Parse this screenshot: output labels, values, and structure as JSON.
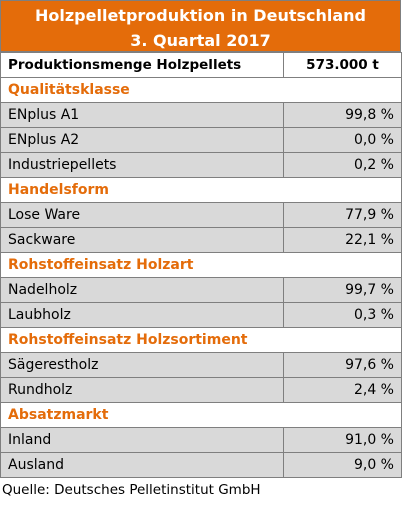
{
  "header": {
    "title": "Holzpelletproduktion in Deutschland",
    "subtitle": "3. Quartal 2017"
  },
  "table": {
    "header": [
      "Produktionsmenge Holzpellets",
      "573.000 t"
    ],
    "sections": [
      {
        "title": "Qualitätsklasse",
        "rows": [
          [
            "ENplus A1",
            "99,8 %"
          ],
          [
            "ENplus A2",
            "0,0 %"
          ],
          [
            "Industriepellets",
            "0,2 %"
          ]
        ]
      },
      {
        "title": "Handelsform",
        "rows": [
          [
            "Lose Ware",
            "77,9 %"
          ],
          [
            "Sackware",
            "22,1 %"
          ]
        ]
      },
      {
        "title": "Rohstoffeinsatz Holzart",
        "rows": [
          [
            "Nadelholz",
            "99,7 %"
          ],
          [
            "Laubholz",
            "0,3 %"
          ]
        ]
      },
      {
        "title": "Rohstoffeinsatz Holzsortiment",
        "rows": [
          [
            "Sägerestholz",
            "97,6 %"
          ],
          [
            "Rundholz",
            "2,4 %"
          ]
        ]
      },
      {
        "title": "Absatzmarkt",
        "rows": [
          [
            "Inland",
            "91,0 %"
          ],
          [
            "Ausland",
            "9,0 %"
          ]
        ]
      }
    ]
  },
  "footer": {
    "source": "Quelle: Deutsches Pelletinstitut GmbH"
  }
}
